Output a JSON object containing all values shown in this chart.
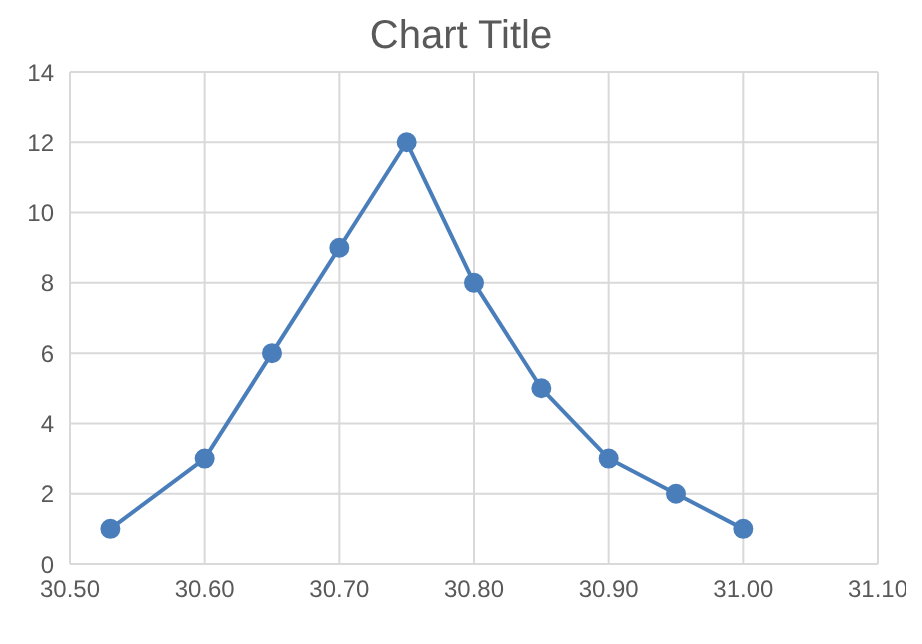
{
  "chart_data": {
    "type": "line",
    "title": "Chart Title",
    "x": [
      30.53,
      30.6,
      30.65,
      30.7,
      30.75,
      30.8,
      30.85,
      30.9,
      30.95,
      31.0
    ],
    "series": [
      {
        "color": "#4a7ebb",
        "values": [
          1,
          3,
          6,
          9,
          12,
          8,
          5,
          3,
          2,
          1
        ]
      }
    ],
    "xlim": [
      30.5,
      31.1
    ],
    "xticks": [
      {
        "value": 30.5,
        "label": "30.50"
      },
      {
        "value": 30.6,
        "label": "30.60"
      },
      {
        "value": 30.7,
        "label": "30.70"
      },
      {
        "value": 30.8,
        "label": "30.80"
      },
      {
        "value": 30.9,
        "label": "30.90"
      },
      {
        "value": 31.0,
        "label": "31.00"
      },
      {
        "value": 31.1,
        "label": "31.10"
      }
    ],
    "ylim": [
      0,
      14
    ],
    "yticks": [
      0,
      2,
      4,
      6,
      8,
      10,
      12,
      14
    ],
    "grid": true,
    "marker": "circle",
    "line_style": "solid"
  }
}
